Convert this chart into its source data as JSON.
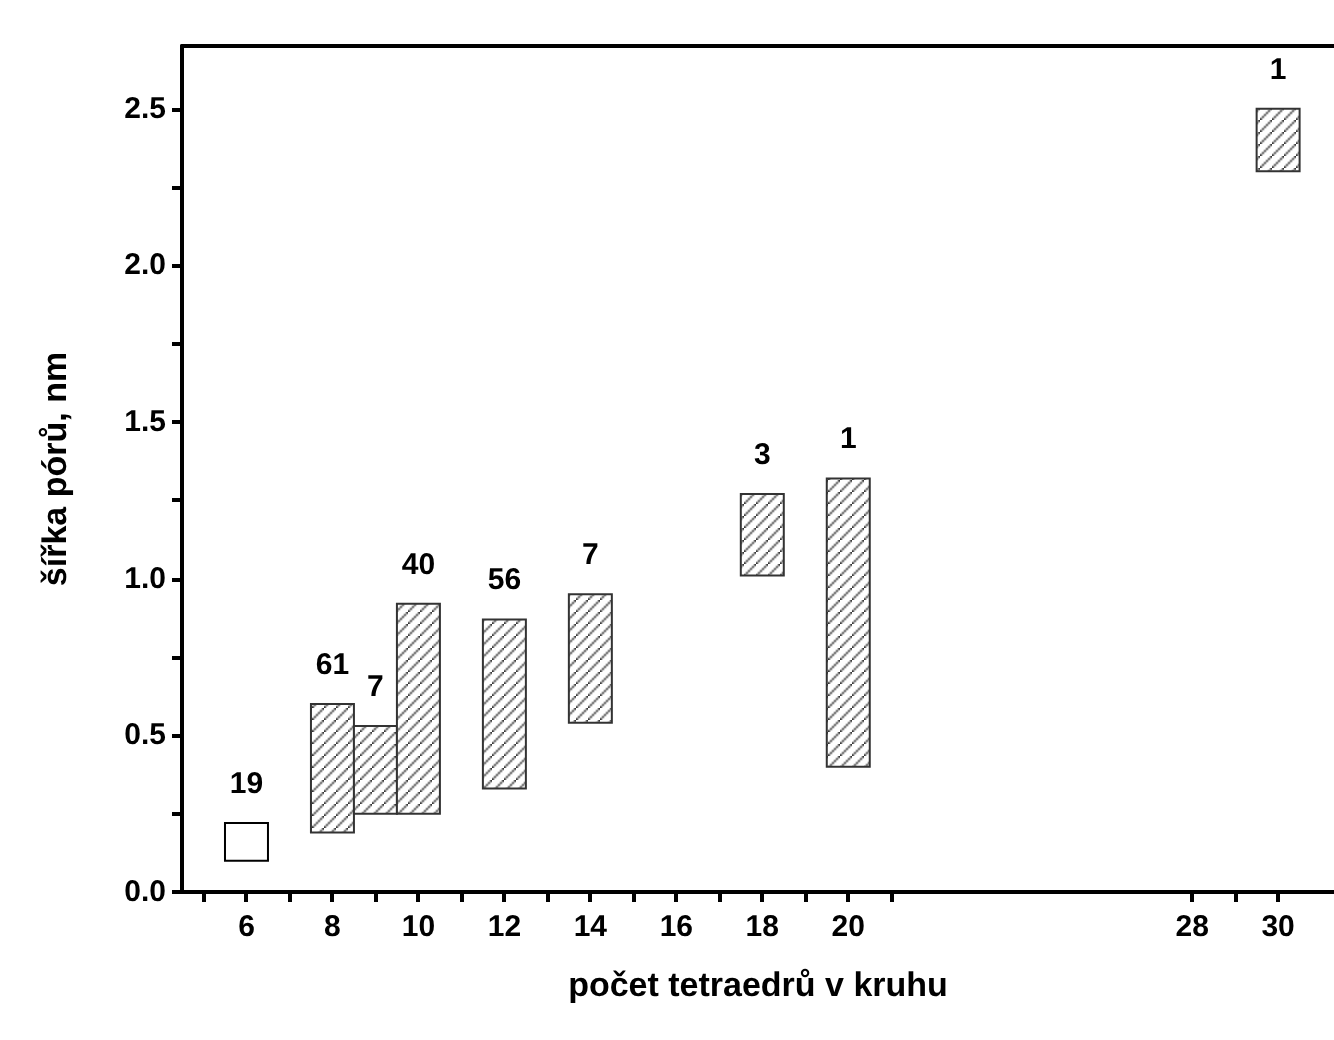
{
  "chart_data": {
    "type": "bar",
    "xlabel": "počet tetraedrů v kruhu",
    "ylabel": "šířka pórů, nm",
    "x": [
      6,
      8,
      9,
      10,
      12,
      14,
      18,
      20,
      30
    ],
    "base": [
      0.1,
      0.19,
      0.25,
      0.25,
      0.33,
      0.54,
      1.01,
      0.4,
      2.3
    ],
    "values": [
      0.12,
      0.41,
      0.28,
      0.67,
      0.54,
      0.41,
      0.26,
      0.92,
      0.2
    ],
    "annotations": [
      {
        "text": "19",
        "x": 6,
        "y": 0.22
      },
      {
        "text": "61",
        "x": 8,
        "y": 0.6
      },
      {
        "text": "7",
        "x": 9,
        "y": 0.53
      },
      {
        "text": "40",
        "x": 10,
        "y": 0.92
      },
      {
        "text": "56",
        "x": 12,
        "y": 0.87
      },
      {
        "text": "7",
        "x": 14,
        "y": 0.95
      },
      {
        "text": "3",
        "x": 18,
        "y": 1.27
      },
      {
        "text": "1",
        "x": 20,
        "y": 1.32
      },
      {
        "text": "1",
        "x": 30,
        "y": 2.5
      }
    ],
    "colors": [
      "#ffffff",
      "#333333",
      "#333333",
      "#333333",
      "#333333",
      "#333333",
      "#333333",
      "#333333",
      "#333333"
    ],
    "xlim": [
      4.5,
      31.3
    ],
    "xticks": [
      {
        "value": 5,
        "label": null
      },
      6,
      {
        "value": 7,
        "label": null
      },
      8,
      {
        "value": 9,
        "label": null
      },
      10,
      {
        "value": 11,
        "label": null
      },
      12,
      {
        "value": 13,
        "label": null
      },
      14,
      {
        "value": 15,
        "label": null
      },
      16,
      {
        "value": 17,
        "label": null
      },
      18,
      {
        "value": 19,
        "label": null
      },
      20,
      {
        "value": 21,
        "label": null
      },
      28,
      {
        "value": 29,
        "label": null
      },
      30
    ],
    "ylim": [
      0,
      2.7
    ],
    "yticks": [
      {
        "value": 0,
        "label": "0.0"
      },
      {
        "value": 0.25,
        "label": null
      },
      {
        "value": 0.5,
        "label": "0.5"
      },
      {
        "value": 0.75,
        "label": null
      },
      {
        "value": 1,
        "label": "1.0"
      },
      {
        "value": 1.25,
        "label": null
      },
      1.5,
      {
        "value": 1.75,
        "label": null
      },
      {
        "value": 2,
        "label": "2.0"
      },
      {
        "value": 2.25,
        "label": null
      },
      2.5
    ],
    "grid": false
  }
}
